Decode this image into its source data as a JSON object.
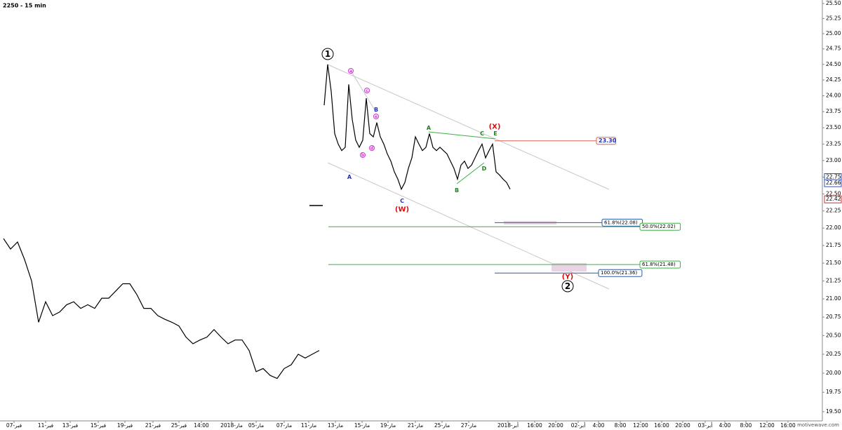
{
  "chart_data": {
    "type": "line",
    "title": "2250 - 15 min",
    "watermark": "motivewave.com",
    "log_scale": true,
    "grid": false,
    "xlim": [
      0,
      1170
    ],
    "ylim": [
      19.4,
      25.5
    ],
    "yticks": [
      {
        "value": 19.5,
        "label": "19.50"
      },
      19.75,
      {
        "value": 20,
        "label": "20.00"
      },
      {
        "value": 20.25,
        "label": "20.25"
      },
      {
        "value": 20.5,
        "label": "20.50"
      },
      20.75,
      {
        "value": 21,
        "label": "21.00"
      },
      21.25,
      {
        "value": 21.5,
        "label": "21.50"
      },
      21.75,
      {
        "value": 22,
        "label": "22.00"
      },
      22.25,
      {
        "value": 22.5,
        "label": "22.50"
      },
      22.75,
      {
        "value": 23,
        "label": "23.00"
      },
      23.25,
      {
        "value": 23.5,
        "label": "23.50"
      },
      23.75,
      {
        "value": 24,
        "label": "24.00"
      },
      24.25,
      {
        "value": 24.5,
        "label": "24.50"
      },
      24.75,
      {
        "value": 25,
        "label": "25.00"
      },
      25.25,
      {
        "value": 25.5,
        "label": "25.50"
      }
    ],
    "xticks": [
      {
        "value": 20,
        "label": "07-فبر"
      },
      {
        "value": 65,
        "label": "11-فبر"
      },
      {
        "value": 100,
        "label": "13-فبر"
      },
      {
        "value": 140,
        "label": "15-فبر"
      },
      {
        "value": 178,
        "label": "19-فبر"
      },
      {
        "value": 218,
        "label": "21-فبر"
      },
      {
        "value": 255,
        "label": "25-فبر"
      },
      {
        "value": 287,
        "label": "14:00"
      },
      {
        "value": 330,
        "label": "2018-مار"
      },
      {
        "value": 365,
        "label": "05-مار"
      },
      {
        "value": 405,
        "label": "07-مار"
      },
      {
        "value": 440,
        "label": "11-مار"
      },
      {
        "value": 478,
        "label": "13-مار"
      },
      {
        "value": 516,
        "label": "15-مار"
      },
      {
        "value": 553,
        "label": "19-مار"
      },
      {
        "value": 592,
        "label": "21-مار"
      },
      {
        "value": 630,
        "label": "25-مار"
      },
      {
        "value": 668,
        "label": "27-مار"
      },
      {
        "value": 724,
        "label": "2018-أبر"
      },
      {
        "value": 762,
        "label": "16:00"
      },
      {
        "value": 792,
        "label": "20:00"
      },
      {
        "value": 824,
        "label": "02-أبر"
      },
      {
        "value": 853,
        "label": "4:00"
      },
      {
        "value": 884,
        "label": "8:00"
      },
      {
        "value": 913,
        "label": "12:00"
      },
      {
        "value": 943,
        "label": "16:00"
      },
      {
        "value": 973,
        "label": "20:00"
      },
      {
        "value": 1005,
        "label": "03-أبر"
      },
      {
        "value": 1033,
        "label": "4:00"
      },
      {
        "value": 1063,
        "label": "8:00"
      },
      {
        "value": 1093,
        "label": "12:00"
      },
      {
        "value": 1123,
        "label": "16:00"
      }
    ],
    "x": [
      5,
      15,
      25,
      35,
      45,
      55,
      65,
      75,
      85,
      95,
      105,
      115,
      125,
      135,
      145,
      155,
      165,
      175,
      185,
      195,
      205,
      215,
      225,
      235,
      245,
      255,
      265,
      275,
      285,
      295,
      305,
      315,
      325,
      335,
      345,
      355,
      365,
      375,
      385,
      395,
      405,
      415,
      425,
      435,
      445,
      455,
      460,
      462,
      467,
      472,
      477,
      482,
      487,
      492,
      497,
      502,
      507,
      512,
      517,
      522,
      527,
      532,
      537,
      542,
      547,
      552,
      557,
      562,
      567,
      572,
      577,
      582,
      587,
      592,
      597,
      602,
      607,
      612,
      617,
      622,
      627,
      632,
      637,
      642,
      647,
      652,
      657,
      662,
      667,
      672,
      677,
      682,
      687,
      692,
      697,
      702,
      707,
      712,
      717,
      722,
      727
    ],
    "series": [
      {
        "name": "2250",
        "color": "#000000",
        "values": [
          21.85,
          21.7,
          21.8,
          21.55,
          21.25,
          20.68,
          20.96,
          20.77,
          20.82,
          20.92,
          20.96,
          20.87,
          20.92,
          20.87,
          21.01,
          21.01,
          21.11,
          21.21,
          21.21,
          21.06,
          20.87,
          20.87,
          20.77,
          20.72,
          20.68,
          20.63,
          20.48,
          20.39,
          20.44,
          20.48,
          20.58,
          20.48,
          20.39,
          20.44,
          20.44,
          20.3,
          20.02,
          20.06,
          19.97,
          19.93,
          20.06,
          20.11,
          20.25,
          20.2,
          20.25,
          20.3,
          null,
          23.85,
          24.5,
          24.07,
          23.41,
          23.25,
          23.15,
          23.2,
          24.18,
          23.63,
          23.31,
          23.2,
          23.31,
          23.96,
          23.41,
          23.36,
          23.58,
          23.36,
          23.25,
          23.1,
          22.99,
          22.83,
          22.72,
          22.57,
          22.67,
          22.88,
          23.04,
          23.36,
          23.25,
          23.15,
          23.2,
          23.41,
          23.2,
          23.15,
          23.2,
          23.15,
          23.1,
          22.99,
          22.88,
          22.72,
          22.93,
          22.99,
          22.88,
          22.93,
          23.04,
          23.15,
          23.25,
          23.04,
          23.15,
          23.25,
          22.83,
          22.78,
          22.72,
          22.67,
          22.57
        ]
      }
    ],
    "levels": [
      {
        "label": "23.30",
        "value": 23.3,
        "color": "#e06050"
      },
      {
        "label": "61.8%(22.08)",
        "value": 22.08,
        "color": "#2a5caa"
      },
      {
        "label": "50.0%(22.02)",
        "value": 22.02,
        "color": "#3cb043"
      },
      {
        "label": "61.8%(21.48)",
        "value": 21.48,
        "color": "#3cb043"
      },
      {
        "label": "100.0%(21.36)",
        "value": 21.36,
        "color": "#2a5caa"
      }
    ],
    "price_markers": [
      {
        "label": "22.75",
        "value": 22.75,
        "color": "#3050c0"
      },
      {
        "label": "22.66",
        "value": 22.66,
        "color": "#3050c0"
      },
      {
        "label": "22.42",
        "value": 22.42,
        "color": "#d03030"
      }
    ],
    "annotations": [
      {
        "text": "1",
        "color": "#000000"
      },
      {
        "text": "A",
        "color": "#2030c0"
      },
      {
        "text": "B",
        "color": "#2030c0"
      },
      {
        "text": "C",
        "color": "#2030c0"
      },
      {
        "text": "(W)",
        "color": "#d01010"
      },
      {
        "text": "a",
        "color": "#d030d0"
      },
      {
        "text": "b",
        "color": "#d030d0"
      },
      {
        "text": "c",
        "color": "#d030d0"
      },
      {
        "text": "d",
        "color": "#d030d0"
      },
      {
        "text": "e",
        "color": "#d030d0"
      },
      {
        "text": "A",
        "color": "#208020"
      },
      {
        "text": "B",
        "color": "#208020"
      },
      {
        "text": "C",
        "color": "#208020"
      },
      {
        "text": "D",
        "color": "#208020"
      },
      {
        "text": "E",
        "color": "#208020"
      },
      {
        "text": "(X)",
        "color": "#d01010"
      },
      {
        "text": "(Y)",
        "color": "#d01010"
      },
      {
        "text": "2",
        "color": "#000000"
      }
    ]
  }
}
